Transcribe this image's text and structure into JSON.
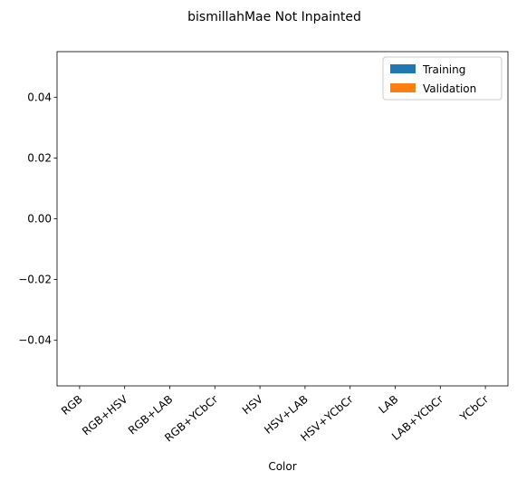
{
  "chart_data": {
    "type": "bar",
    "title": "bismillahMae Not Inpainted",
    "xlabel": "Color",
    "ylabel": "",
    "categories": [
      "RGB",
      "RGB+HSV",
      "RGB+LAB",
      "RGB+YCbCr",
      "HSV",
      "HSV+LAB",
      "HSV+YCbCr",
      "LAB",
      "LAB+YCbCr",
      "YCbCr"
    ],
    "series": [
      {
        "name": "Training",
        "color": "#1f77b4",
        "values": [
          0,
          0,
          0,
          0,
          0,
          0,
          0,
          0,
          0,
          0
        ]
      },
      {
        "name": "Validation",
        "color": "#ff7f0e",
        "values": [
          0,
          0,
          0,
          0,
          0,
          0,
          0,
          0,
          0,
          0
        ]
      }
    ],
    "ylim": [
      -0.055,
      0.055
    ],
    "yticks": [
      "0.04",
      "0.02",
      "0.00",
      "−0.02",
      "−0.04"
    ],
    "ytick_values": [
      0.04,
      0.02,
      0.0,
      -0.02,
      -0.04
    ],
    "legend_position": "top-right",
    "grid": false
  }
}
